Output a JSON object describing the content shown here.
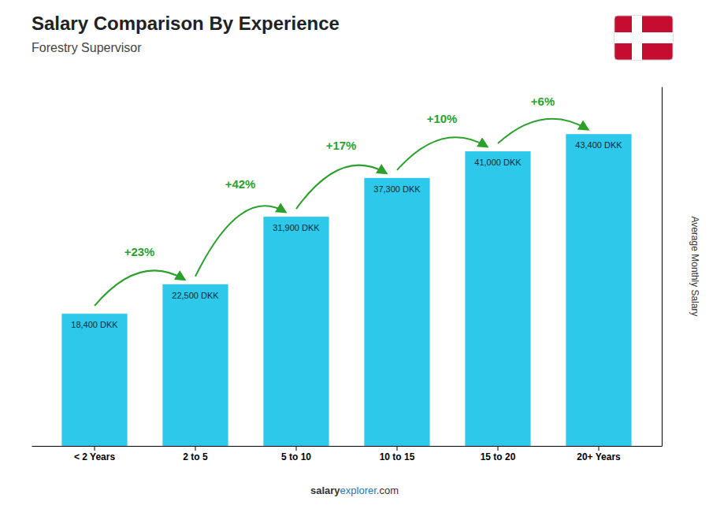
{
  "chart_data": {
    "type": "bar",
    "title": "Salary Comparison By Experience",
    "subtitle": "Forestry Supervisor",
    "ylabel": "Average Monthly Salary",
    "categories": [
      "< 2 Years",
      "2 to 5",
      "5 to 10",
      "10 to 15",
      "15 to 20",
      "20+ Years"
    ],
    "values": [
      18400,
      22500,
      31900,
      37300,
      41000,
      43400
    ],
    "value_labels": [
      "18,400 DKK",
      "22,500 DKK",
      "31,900 DKK",
      "37,300 DKK",
      "41,000 DKK",
      "43,400 DKK"
    ],
    "data_labels": true,
    "annotations": [
      "+23%",
      "+42%",
      "+17%",
      "+10%",
      "+6%"
    ],
    "footer": [
      "salary",
      "explorer",
      ".com"
    ],
    "color": "#2ec8ea",
    "ylim": [
      0,
      50000
    ],
    "tick_labels": "x",
    "grid": false
  }
}
